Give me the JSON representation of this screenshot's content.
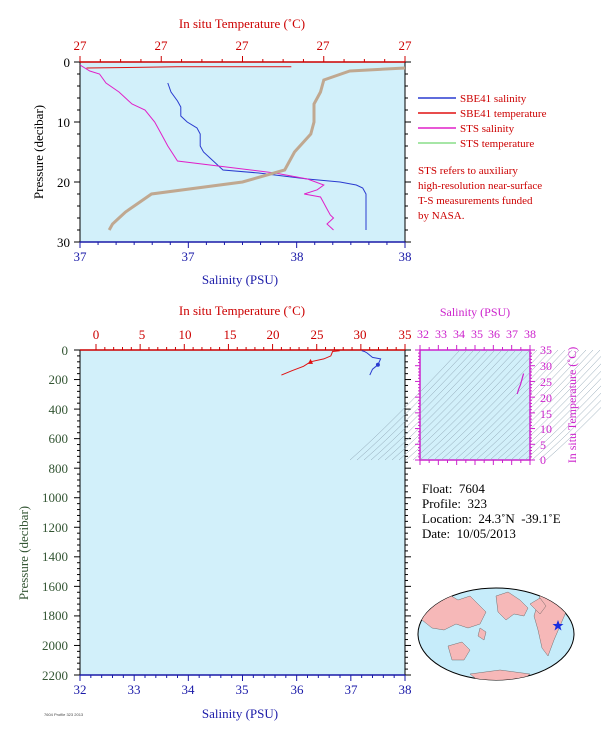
{
  "colors": {
    "sbe_salinity": "#2a3bd0",
    "sbe_temperature": "#e01010",
    "sts_salinity": "#e020c8",
    "sts_temperature": "#88dd88",
    "plot_bg": "#d2f0fa",
    "temp_axis": "#cc0000",
    "sal_axis": "#1a1aa8",
    "ts_axis": "#cc22cc",
    "pressure_label": "#335533"
  },
  "top_panel": {
    "top_axis_title": "In situ Temperature (˚C)",
    "bottom_axis_title": "Salinity (PSU)",
    "left_axis_title": "Pressure (decibar)",
    "temp_tick_labels": [
      "27",
      "27",
      "27",
      "27",
      "27"
    ],
    "sal_tick_labels": [
      "37",
      "37",
      "38",
      "38"
    ],
    "pressure_tick_labels": [
      "0",
      "10",
      "20",
      "30"
    ],
    "legend": [
      {
        "label": "SBE41 salinity",
        "color_key": "sbe_salinity"
      },
      {
        "label": "SBE41 temperature",
        "color_key": "sbe_temperature"
      },
      {
        "label": "STS salinity",
        "color_key": "sts_salinity"
      },
      {
        "label": "STS temperature",
        "color_key": "sts_temperature"
      }
    ],
    "note": [
      "STS refers to auxiliary",
      "high-resolution near-surface",
      "T-S measurements funded",
      "by NASA."
    ]
  },
  "bottom_panel": {
    "top_axis_title": "In situ Temperature (˚C)",
    "bottom_axis_title": "Salinity (PSU)",
    "left_axis_title": "Pressure (decibar)",
    "temp_tick_labels": [
      "0",
      "5",
      "10",
      "15",
      "20",
      "25",
      "30",
      "35"
    ],
    "sal_tick_labels": [
      "32",
      "33",
      "34",
      "35",
      "36",
      "37",
      "38"
    ],
    "pressure_tick_labels": [
      "0",
      "200",
      "400",
      "600",
      "800",
      "1000",
      "1200",
      "1400",
      "1600",
      "1800",
      "2000",
      "2200"
    ]
  },
  "ts_panel": {
    "top_axis_title": "Salinity (PSU)",
    "right_axis_title": "In situ Temperature (˚C)",
    "sal_tick_labels": [
      "32",
      "33",
      "34",
      "35",
      "36",
      "37",
      "38"
    ],
    "temp_tick_labels": [
      "0",
      "5",
      "10",
      "15",
      "20",
      "25",
      "30",
      "35"
    ]
  },
  "float_info": {
    "float": "Float:  7604",
    "profile": "Profile:  323",
    "location": "Location:  24.3˚N  -39.1˚E",
    "date": "Date:  10/05/2013"
  },
  "footer": "7604 Profile 323 2013",
  "chart_data": [
    {
      "type": "line",
      "title": "",
      "xlabel": "Salinity (PSU) / In situ Temperature (˚C)",
      "ylabel": "Pressure (decibar)",
      "x_sal_lim": [
        37.0,
        38.0
      ],
      "x_temp_lim": [
        26.7,
        27.7
      ],
      "ylim": [
        30,
        0
      ],
      "series": [
        {
          "name": "SBE41 salinity",
          "x": [
            37.27,
            37.28,
            37.3,
            37.31,
            37.31,
            37.33,
            37.36,
            37.37,
            37.37,
            37.38,
            37.4,
            37.42,
            37.43,
            37.44,
            37.55,
            37.7,
            37.8,
            37.85,
            37.87,
            37.88,
            37.88
          ],
          "y": [
            3.5,
            5,
            6.5,
            7.5,
            9,
            10,
            11,
            12,
            14,
            15,
            16,
            17,
            17.5,
            18,
            18.5,
            19.5,
            20,
            20.5,
            21,
            22,
            28
          ]
        },
        {
          "name": "SBE41 temperature",
          "x": [
            27.35,
            27.0,
            26.72
          ],
          "y": [
            0.8,
            0.8,
            1.0
          ]
        },
        {
          "name": "STS salinity",
          "x": [
            37.0,
            37.03,
            37.06,
            37.08,
            37.12,
            37.14,
            37.16,
            37.2,
            37.23,
            37.25,
            37.27,
            37.3,
            37.45,
            37.6,
            37.7,
            37.75,
            37.73,
            37.69,
            37.74,
            37.75,
            37.76,
            37.77,
            37.78,
            37.76,
            37.77,
            37.78
          ],
          "y": [
            0.5,
            1.5,
            2,
            3.5,
            5,
            6,
            7,
            8,
            10,
            12,
            14,
            16.5,
            17.5,
            18.5,
            19.5,
            20.5,
            21.3,
            22,
            22.5,
            23.5,
            24.5,
            25.5,
            26,
            27,
            27.5,
            28
          ]
        },
        {
          "name": "STS temperature",
          "x": [
            27.7,
            27.53,
            27.45,
            27.44,
            27.42,
            27.42,
            27.41,
            27.36,
            27.33,
            27.2,
            26.92,
            26.88,
            26.84,
            26.82,
            26.8,
            26.79
          ],
          "y": [
            1,
            1.5,
            3,
            5,
            7,
            10,
            12,
            15,
            18,
            20,
            22,
            23.5,
            25,
            26,
            27,
            28
          ]
        }
      ]
    },
    {
      "type": "line",
      "title": "",
      "xlabel": "Salinity (PSU) / In situ Temperature (˚C)",
      "ylabel": "Pressure (decibar)",
      "x_sal_lim": [
        32,
        38
      ],
      "x_temp_lim": [
        0,
        35
      ],
      "ylim": [
        2200,
        0
      ],
      "series": [
        {
          "name": "SBE41 salinity",
          "x": [
            37.2,
            37.25,
            37.3,
            37.4,
            37.55,
            37.5,
            37.4,
            37.35
          ],
          "y": [
            5,
            10,
            20,
            50,
            60,
            100,
            130,
            170
          ]
        },
        {
          "name": "SBE41 temperature",
          "x": [
            27.6,
            26.8,
            26.6,
            25.8,
            24.3,
            23.5,
            22.2,
            21.0
          ],
          "y": [
            5,
            10,
            40,
            60,
            80,
            110,
            140,
            170
          ]
        }
      ]
    },
    {
      "type": "line",
      "title": "",
      "xlabel": "Salinity (PSU)",
      "ylabel": "In situ Temperature (˚C)",
      "xlim": [
        32,
        38
      ],
      "ylim": [
        0,
        35
      ],
      "series": [
        {
          "name": "T-S",
          "x": [
            37.3,
            37.38,
            37.48,
            37.55,
            37.6,
            37.65
          ],
          "y": [
            21,
            22.5,
            24,
            25.5,
            26.5,
            27.5
          ]
        }
      ]
    }
  ]
}
